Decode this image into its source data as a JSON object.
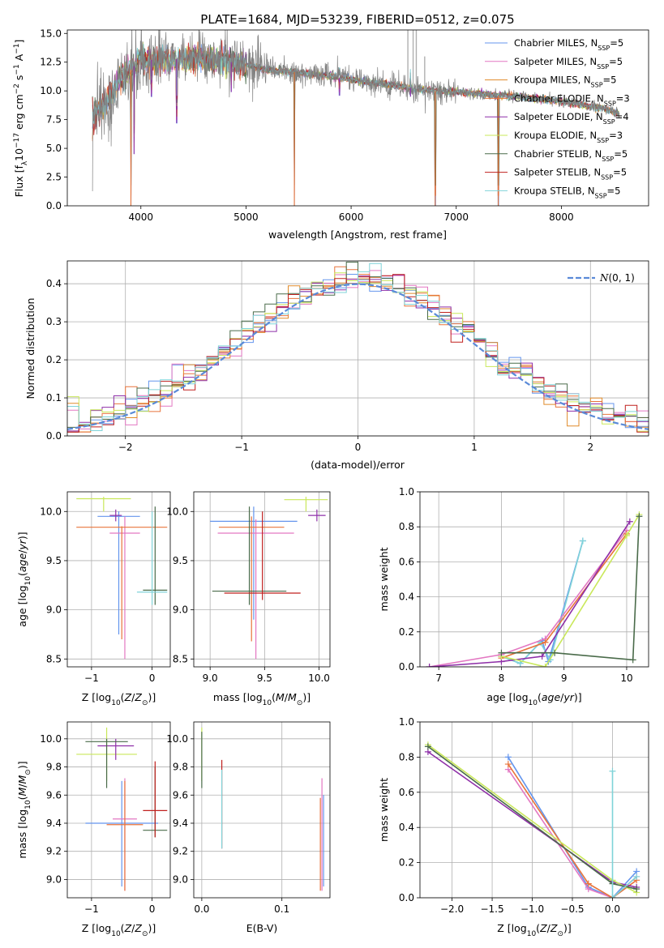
{
  "figure": {
    "title": "PLATE=1684, MJD=53239, FIBERID=0512, z=0.075"
  },
  "legend": {
    "entries": [
      {
        "label": "Chabrier MILES, N",
        "sub": "SSP",
        "suffix": "=5",
        "color": "#6495ed"
      },
      {
        "label": "Salpeter MILES, N",
        "sub": "SSP",
        "suffix": "=5",
        "color": "#e377c2"
      },
      {
        "label": "Kroupa MILES, N",
        "sub": "SSP",
        "suffix": "=5",
        "color": "#e08a2a"
      },
      {
        "label": "Chabrier ELODIE, N",
        "sub": "SSP",
        "suffix": "=3",
        "color": "#e8743b"
      },
      {
        "label": "Salpeter ELODIE, N",
        "sub": "SSP",
        "suffix": "=4",
        "color": "#8e2fa8"
      },
      {
        "label": "Kroupa ELODIE, N",
        "sub": "SSP",
        "suffix": "=3",
        "color": "#c9e85a"
      },
      {
        "label": "Chabrier STELIB, N",
        "sub": "SSP",
        "suffix": "=5",
        "color": "#4a6b4a"
      },
      {
        "label": "Salpeter STELIB, N",
        "sub": "SSP",
        "suffix": "=5",
        "color": "#c0201e"
      },
      {
        "label": "Kroupa STELIB, N",
        "sub": "SSP",
        "suffix": "=5",
        "color": "#7fd3d8"
      }
    ]
  },
  "chart_data": [
    {
      "id": "spectrum",
      "type": "line",
      "xlabel": "wavelength [Angstrom, rest frame]",
      "ylabel_main": "Flux [f",
      "ylabel_sub": "λ",
      "ylabel_rest": "10",
      "ylabel_sup1": "−17",
      "ylabel_tail": " erg cm",
      "ylabel_sup2": "−2",
      "ylabel_tail2": " s",
      "ylabel_sup3": "−1",
      "ylabel_tail3": " A",
      "ylabel_sup4": "−1",
      "ylabel_end": "]",
      "xlim": [
        3300,
        8830
      ],
      "ylim": [
        0,
        15.3
      ],
      "xticks": [
        4000,
        5000,
        6000,
        7000,
        8000
      ],
      "xtick_labels": [
        "4000",
        "5000",
        "6000",
        "7000",
        "8000"
      ],
      "yticks": [
        0,
        2.5,
        5,
        7.5,
        10,
        12.5,
        15
      ],
      "ytick_labels": [
        "0.0",
        "2.5",
        "5.0",
        "7.5",
        "10.0",
        "12.5",
        "15.0"
      ],
      "data_color": "#808080",
      "continuum": [
        [
          3540,
          7.6
        ],
        [
          3700,
          9.4
        ],
        [
          3800,
          11.0
        ],
        [
          3900,
          11.8
        ],
        [
          4000,
          12.8
        ],
        [
          4100,
          12.7
        ],
        [
          4200,
          12.7
        ],
        [
          4400,
          12.8
        ],
        [
          4600,
          12.8
        ],
        [
          4800,
          12.6
        ],
        [
          5000,
          12.3
        ],
        [
          5200,
          11.8
        ],
        [
          5400,
          11.7
        ],
        [
          5600,
          11.5
        ],
        [
          5800,
          11.3
        ],
        [
          6000,
          11.0
        ],
        [
          6200,
          10.7
        ],
        [
          6400,
          10.5
        ],
        [
          6600,
          10.2
        ],
        [
          6800,
          10.0
        ],
        [
          7000,
          9.9
        ],
        [
          7200,
          9.8
        ],
        [
          7400,
          9.6
        ],
        [
          7600,
          9.5
        ],
        [
          7800,
          9.3
        ],
        [
          8000,
          9.1
        ],
        [
          8200,
          8.8
        ],
        [
          8400,
          8.5
        ],
        [
          8550,
          8.0
        ]
      ],
      "absorption_dips": [
        [
          3905,
          0.0
        ],
        [
          3935,
          4.5
        ],
        [
          4100,
          9.5
        ],
        [
          4340,
          7.2
        ],
        [
          4860,
          9.9
        ],
        [
          5460,
          0.0
        ],
        [
          5890,
          9.6
        ],
        [
          6565,
          9.5
        ],
        [
          6800,
          0.0
        ],
        [
          7400,
          0.0
        ]
      ],
      "emission_spikes": [
        [
          6540,
          15.3
        ],
        [
          6590,
          15.3
        ],
        [
          6620,
          15.3
        ],
        [
          6700,
          13.0
        ],
        [
          5780,
          12.5
        ]
      ]
    },
    {
      "id": "residuals",
      "type": "area",
      "xlabel": "(data-model)/error",
      "ylabel": "Normed distribution",
      "xlim": [
        -2.5,
        2.5
      ],
      "ylim": [
        0,
        0.46
      ],
      "xticks": [
        -2,
        -1,
        0,
        1,
        2
      ],
      "xtick_labels": [
        "−2",
        "−1",
        "0",
        "1",
        "2"
      ],
      "yticks": [
        0,
        0.1,
        0.2,
        0.3,
        0.4
      ],
      "ytick_labels": [
        "0.0",
        "0.1",
        "0.2",
        "0.3",
        "0.4"
      ],
      "legend_label": "N(0, 1)",
      "gauss_color": "#5a8ad8",
      "bin_width": 0.1
    },
    {
      "id": "age_vs_Z",
      "type": "scatter",
      "xlabel": "Z [log10(Z/Z⊙)]",
      "ylabel": "age  [log10(age/yr)]",
      "xlim": [
        -1.4,
        0.3
      ],
      "ylim": [
        8.42,
        10.2
      ],
      "xticks": [
        -1,
        0
      ],
      "xtick_labels": [
        "−1",
        "0"
      ],
      "yticks": [
        8.5,
        9.0,
        9.5,
        10.0
      ],
      "ytick_labels": [
        "8.5",
        "9.0",
        "9.5",
        "10.0"
      ],
      "points": [
        {
          "x": -0.55,
          "y": 9.95,
          "xerr": 0.35,
          "yerr": [
            8.75,
            10.0
          ],
          "color": "#6495ed"
        },
        {
          "x": -0.45,
          "y": 9.78,
          "xerr": 0.25,
          "yerr": [
            8.5,
            9.95
          ],
          "color": "#e377c2"
        },
        {
          "x": -0.5,
          "y": 9.84,
          "xerr": 0.75,
          "yerr": [
            8.7,
            9.85
          ],
          "color": "#e8743b"
        },
        {
          "x": 0.05,
          "y": 9.2,
          "xerr": 0.2,
          "yerr": [
            9.05,
            10.05
          ],
          "color": "#4a6b4a"
        },
        {
          "x": -0.8,
          "y": 10.13,
          "xerr": 0.45,
          "yerr": [
            10.0,
            10.15
          ],
          "color": "#c9e85a"
        },
        {
          "x": -0.6,
          "y": 9.96,
          "xerr": 0.1,
          "yerr": [
            9.9,
            10.02
          ],
          "color": "#8e2fa8"
        },
        {
          "x": 0.0,
          "y": 9.18,
          "xerr": 0.25,
          "yerr": [
            9.05,
            10.0
          ],
          "color": "#7fd3d8"
        }
      ]
    },
    {
      "id": "age_vs_mass",
      "type": "scatter",
      "xlabel": "mass [log10(M/M⊙)]",
      "ylabel": "",
      "xlim": [
        8.85,
        10.1
      ],
      "ylim": [
        8.42,
        10.2
      ],
      "xticks": [
        9.0,
        9.5,
        10.0
      ],
      "xtick_labels": [
        "9.0",
        "9.5",
        "10.0"
      ],
      "yticks": [
        8.5,
        9.0,
        9.5,
        10.0
      ],
      "ytick_labels": [
        "8.5",
        "9.0",
        "9.5",
        "10.0"
      ],
      "points": [
        {
          "x": 9.4,
          "y": 9.9,
          "xerr": 0.4,
          "yerr": [
            8.9,
            10.05
          ],
          "color": "#6495ed"
        },
        {
          "x": 9.42,
          "y": 9.78,
          "xerr": 0.35,
          "yerr": [
            8.5,
            9.92
          ],
          "color": "#e377c2"
        },
        {
          "x": 9.38,
          "y": 9.84,
          "xerr": 0.3,
          "yerr": [
            8.68,
            9.95
          ],
          "color": "#e8743b"
        },
        {
          "x": 9.36,
          "y": 9.19,
          "xerr": 0.34,
          "yerr": [
            9.05,
            10.05
          ],
          "color": "#4a6b4a"
        },
        {
          "x": 9.48,
          "y": 9.17,
          "xerr": 0.35,
          "yerr": [
            9.1,
            10.0
          ],
          "color": "#c0201e"
        },
        {
          "x": 9.88,
          "y": 10.12,
          "xerr": 0.2,
          "yerr": [
            10.0,
            10.15
          ],
          "color": "#c9e85a"
        },
        {
          "x": 9.98,
          "y": 9.96,
          "xerr": 0.08,
          "yerr": [
            9.9,
            10.02
          ],
          "color": "#8e2fa8"
        }
      ]
    },
    {
      "id": "mw_vs_age",
      "type": "line",
      "xlabel": "age  [log10(age/yr)]",
      "ylabel": "mass weight",
      "xlim": [
        6.7,
        10.35
      ],
      "ylim": [
        0,
        1
      ],
      "xticks": [
        7,
        8,
        9,
        10
      ],
      "xtick_labels": [
        "7",
        "8",
        "9",
        "10"
      ],
      "yticks": [
        0,
        0.2,
        0.4,
        0.6,
        0.8,
        1.0
      ],
      "ytick_labels": [
        "0.0",
        "0.2",
        "0.4",
        "0.6",
        "0.8",
        "1.0"
      ],
      "series": [
        {
          "color": "#6495ed",
          "x": [
            8.0,
            8.3,
            8.65,
            8.75,
            9.3
          ],
          "y": [
            0.06,
            0.02,
            0.15,
            0.03,
            0.72
          ]
        },
        {
          "color": "#7fd3d8",
          "x": [
            8.0,
            8.3,
            8.62,
            8.78,
            9.3
          ],
          "y": [
            0.06,
            0.02,
            0.14,
            0.04,
            0.72
          ]
        },
        {
          "color": "#e377c2",
          "x": [
            6.85,
            8.0,
            8.7,
            10.0
          ],
          "y": [
            0.0,
            0.07,
            0.16,
            0.78
          ]
        },
        {
          "color": "#e8743b",
          "x": [
            8.0,
            8.7,
            10.0
          ],
          "y": [
            0.05,
            0.14,
            0.76
          ]
        },
        {
          "color": "#8e2fa8",
          "x": [
            6.85,
            8.0,
            8.65,
            10.05
          ],
          "y": [
            0.0,
            0.03,
            0.06,
            0.83
          ]
        },
        {
          "color": "#c9e85a",
          "x": [
            8.0,
            8.7,
            10.0,
            10.2
          ],
          "y": [
            0.06,
            0.0,
            0.75,
            0.87
          ]
        },
        {
          "color": "#4a6b4a",
          "x": [
            8.0,
            8.85,
            10.1,
            10.2
          ],
          "y": [
            0.08,
            0.08,
            0.04,
            0.86
          ]
        }
      ]
    },
    {
      "id": "mass_vs_Z",
      "type": "scatter",
      "xlabel": "Z [log10(Z/Z⊙)]",
      "ylabel": "mass [log10(M/M⊙)]",
      "xlim": [
        -1.4,
        0.3
      ],
      "ylim": [
        8.87,
        10.12
      ],
      "xticks": [
        -1,
        0
      ],
      "xtick_labels": [
        "−1",
        "0"
      ],
      "yticks": [
        9.0,
        9.2,
        9.4,
        9.6,
        9.8,
        10.0
      ],
      "ytick_labels": [
        "9.0",
        "9.2",
        "9.4",
        "9.6",
        "9.8",
        "10.0"
      ],
      "points": [
        {
          "x": -0.5,
          "y": 9.4,
          "xerr": 0.6,
          "yerr": [
            8.95,
            9.7
          ],
          "color": "#6495ed"
        },
        {
          "x": -0.45,
          "y": 9.43,
          "xerr": 0.2,
          "yerr": [
            8.92,
            9.72
          ],
          "color": "#e377c2"
        },
        {
          "x": -0.45,
          "y": 9.39,
          "xerr": 0.3,
          "yerr": [
            8.92,
            9.7
          ],
          "color": "#e8743b"
        },
        {
          "x": 0.05,
          "y": 9.35,
          "xerr": 0.2,
          "yerr": [
            9.3,
            9.8
          ],
          "color": "#4a6b4a"
        },
        {
          "x": 0.05,
          "y": 9.49,
          "xerr": 0.2,
          "yerr": [
            9.3,
            9.84
          ],
          "color": "#c0201e"
        },
        {
          "x": -0.75,
          "y": 9.89,
          "xerr": 0.5,
          "yerr": [
            9.7,
            10.08
          ],
          "color": "#c9e85a"
        },
        {
          "x": -0.6,
          "y": 9.95,
          "xerr": 0.3,
          "yerr": [
            9.85,
            10.0
          ],
          "color": "#8e2fa8"
        },
        {
          "x": -0.75,
          "y": 9.98,
          "xerr": 0.35,
          "yerr": [
            9.65,
            10.0
          ],
          "color": "#4a6b4a"
        }
      ]
    },
    {
      "id": "mass_vs_ebv",
      "type": "scatter",
      "xlabel": "E(B-V)",
      "ylabel": "",
      "xlim": [
        -0.01,
        0.16
      ],
      "ylim": [
        8.87,
        10.12
      ],
      "xticks": [
        0.0,
        0.1
      ],
      "xtick_labels": [
        "0.0",
        "0.1"
      ],
      "yticks": [
        9.0,
        9.2,
        9.4,
        9.6,
        9.8,
        10.0
      ],
      "ytick_labels": [
        "9.0",
        "9.2",
        "9.4",
        "9.6",
        "9.8",
        "10.0"
      ],
      "points": [
        {
          "x": 0.0,
          "y": 9.88,
          "xerr": 0.0,
          "yerr": [
            9.7,
            10.08
          ],
          "color": "#c9e85a"
        },
        {
          "x": 0.0,
          "y": 9.85,
          "xerr": 0.0,
          "yerr": [
            9.65,
            10.05
          ],
          "color": "#4a6b4a"
        },
        {
          "x": 0.025,
          "y": 9.5,
          "xerr": 0.0,
          "yerr": [
            9.22,
            9.85
          ],
          "color": "#c0201e"
        },
        {
          "x": 0.025,
          "y": 9.5,
          "xerr": 0.0,
          "yerr": [
            9.22,
            9.78
          ],
          "color": "#7fd3d8"
        },
        {
          "x": 0.15,
          "y": 9.3,
          "xerr": 0.0,
          "yerr": [
            8.92,
            9.72
          ],
          "color": "#e377c2"
        },
        {
          "x": 0.148,
          "y": 9.3,
          "xerr": 0.0,
          "yerr": [
            8.92,
            9.58
          ],
          "color": "#e8743b"
        },
        {
          "x": 0.152,
          "y": 9.3,
          "xerr": 0.0,
          "yerr": [
            8.95,
            9.6
          ],
          "color": "#6495ed"
        }
      ]
    },
    {
      "id": "mw_vs_Z",
      "type": "line",
      "xlabel": "Z [log10(Z/Z⊙)]",
      "ylabel": "mass weight",
      "xlim": [
        -2.4,
        0.45
      ],
      "ylim": [
        0,
        1
      ],
      "xticks": [
        -2.0,
        -1.5,
        -1.0,
        -0.5,
        0.0
      ],
      "xtick_labels": [
        "−2.0",
        "−1.5",
        "−1.0",
        "−0.5",
        "0.0"
      ],
      "yticks": [
        0,
        0.2,
        0.4,
        0.6,
        0.8,
        1.0
      ],
      "ytick_labels": [
        "0.0",
        "0.2",
        "0.4",
        "0.6",
        "0.8",
        "1.0"
      ],
      "series": [
        {
          "color": "#6495ed",
          "x": [
            -1.3,
            -0.3,
            0.0,
            0.3
          ],
          "y": [
            0.8,
            0.06,
            0.0,
            0.15
          ]
        },
        {
          "color": "#e377c2",
          "x": [
            -1.3,
            -0.3,
            0.0,
            0.3
          ],
          "y": [
            0.73,
            0.05,
            0.0,
            0.12
          ]
        },
        {
          "color": "#e8743b",
          "x": [
            -1.3,
            -0.3,
            0.0,
            0.3
          ],
          "y": [
            0.76,
            0.08,
            0.0,
            0.1
          ]
        },
        {
          "color": "#8e2fa8",
          "x": [
            -2.3,
            0.0,
            0.3
          ],
          "y": [
            0.83,
            0.09,
            0.06
          ]
        },
        {
          "color": "#c9e85a",
          "x": [
            -2.3,
            0.0,
            0.3
          ],
          "y": [
            0.87,
            0.1,
            0.03
          ]
        },
        {
          "color": "#4a6b4a",
          "x": [
            -2.3,
            0.0,
            0.3
          ],
          "y": [
            0.86,
            0.08,
            0.05
          ]
        },
        {
          "color": "#7fd3d8",
          "x": [
            0.0,
            0.0,
            0.3
          ],
          "y": [
            0.72,
            0.0,
            0.12
          ]
        }
      ]
    }
  ]
}
